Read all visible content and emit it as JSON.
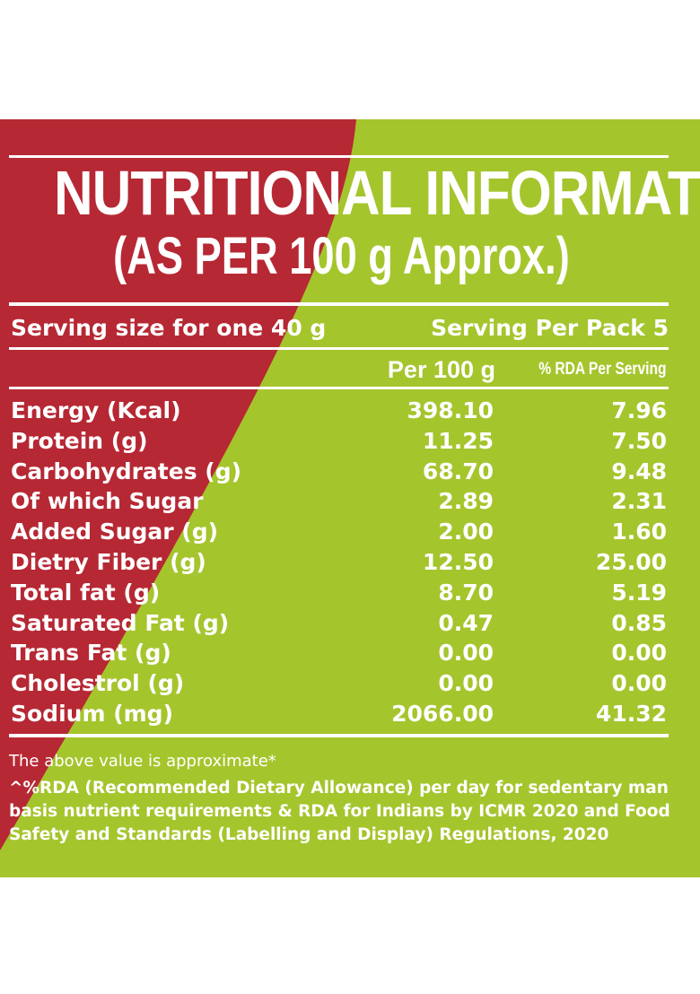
{
  "colors": {
    "red": "#b62834",
    "green": "#a5c52d",
    "text": "#ffffff"
  },
  "title": "NUTRITIONAL INFORMATION",
  "subtitle": "(AS PER 100 g Approx.)",
  "serving": {
    "size": "Serving size for one 40 g",
    "per_pack": "Serving Per Pack 5"
  },
  "columns": {
    "per100": "Per 100 g",
    "rda": "% RDA Per Serving"
  },
  "rows": [
    {
      "name": "Energy (Kcal)",
      "per100": "398.10",
      "rda": "7.96"
    },
    {
      "name": "Protein (g)",
      "per100": "11.25",
      "rda": "7.50"
    },
    {
      "name": "Carbohydrates (g)",
      "per100": "68.70",
      "rda": "9.48"
    },
    {
      "name": "Of which Sugar",
      "per100": "2.89",
      "rda": "2.31"
    },
    {
      "name": "Added Sugar (g)",
      "per100": "2.00",
      "rda": "1.60"
    },
    {
      "name": "Dietry Fiber (g)",
      "per100": "12.50",
      "rda": "25.00"
    },
    {
      "name": "Total fat (g)",
      "per100": "8.70",
      "rda": "5.19"
    },
    {
      "name": "Saturated Fat (g)",
      "per100": "0.47",
      "rda": "0.85"
    },
    {
      "name": "Trans Fat (g)",
      "per100": "0.00",
      "rda": "0.00"
    },
    {
      "name": "Cholestrol (g)",
      "per100": "0.00",
      "rda": "0.00"
    },
    {
      "name": "Sodium (mg)",
      "per100": "2066.00",
      "rda": "41.32"
    }
  ],
  "footnotes": {
    "approx": "The above value is approximate*",
    "rda_line1": "^%RDA (Recommended Dietary Allowance) per day for sedentary man",
    "rda_line2": "basis nutrient requirements & RDA for Indians by ICMR 2020 and Food",
    "rda_line3": "Safety and Standards (Labelling and Display) Regulations, 2020"
  }
}
